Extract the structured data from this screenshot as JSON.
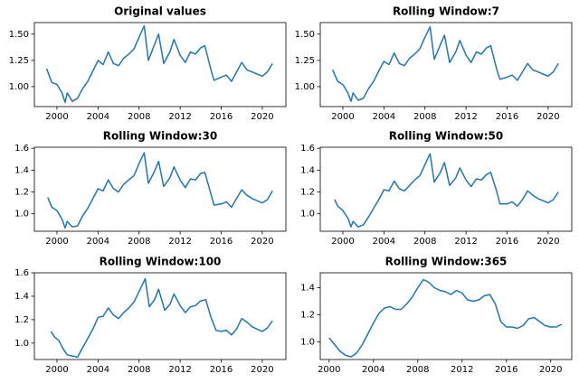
{
  "chart_data": [
    {
      "type": "line",
      "title": "Original values",
      "color": "#1f77b4",
      "x": [
        1999.0,
        1999.5,
        2000.0,
        2000.5,
        2000.8,
        2001.0,
        2001.5,
        2002.0,
        2002.5,
        2003.0,
        2003.5,
        2004.0,
        2004.5,
        2005.0,
        2005.5,
        2006.0,
        2006.5,
        2007.0,
        2007.5,
        2008.0,
        2008.5,
        2008.9,
        2009.5,
        2009.9,
        2010.4,
        2011.0,
        2011.4,
        2012.0,
        2012.5,
        2013.0,
        2013.5,
        2014.0,
        2014.4,
        2015.0,
        2015.3,
        2016.0,
        2016.5,
        2017.0,
        2017.5,
        2018.0,
        2018.5,
        2019.0,
        2019.5,
        2020.0,
        2020.5,
        2021.0
      ],
      "values": [
        1.17,
        1.04,
        1.02,
        0.94,
        0.85,
        0.94,
        0.86,
        0.89,
        0.98,
        1.05,
        1.15,
        1.25,
        1.21,
        1.33,
        1.22,
        1.2,
        1.27,
        1.31,
        1.36,
        1.47,
        1.58,
        1.25,
        1.4,
        1.5,
        1.22,
        1.33,
        1.45,
        1.3,
        1.23,
        1.33,
        1.31,
        1.37,
        1.39,
        1.16,
        1.06,
        1.09,
        1.11,
        1.05,
        1.14,
        1.23,
        1.16,
        1.14,
        1.12,
        1.1,
        1.14,
        1.22
      ],
      "xlim": [
        1997.8,
        2022.3
      ],
      "xticks": [
        2000,
        2004,
        2008,
        2012,
        2016,
        2020
      ],
      "ylim": [
        0.81,
        1.61
      ],
      "yticks": [
        {
          "value": 1,
          "label": "1.00"
        },
        {
          "value": 1.25,
          "label": "1.25"
        },
        {
          "value": 1.5,
          "label": "1.50"
        }
      ]
    },
    {
      "type": "line",
      "title": "Rolling Window:7",
      "color": "#1f77b4",
      "x": [
        1999.0,
        1999.5,
        2000.0,
        2000.5,
        2000.8,
        2001.0,
        2001.5,
        2002.0,
        2002.5,
        2003.0,
        2003.5,
        2004.0,
        2004.5,
        2005.0,
        2005.5,
        2006.0,
        2006.5,
        2007.0,
        2007.5,
        2008.0,
        2008.5,
        2008.9,
        2009.5,
        2009.9,
        2010.4,
        2011.0,
        2011.4,
        2012.0,
        2012.5,
        2013.0,
        2013.5,
        2014.0,
        2014.4,
        2015.0,
        2015.3,
        2016.0,
        2016.5,
        2017.0,
        2017.5,
        2018.0,
        2018.5,
        2019.0,
        2019.5,
        2020.0,
        2020.5,
        2021.0
      ],
      "values": [
        1.16,
        1.05,
        1.02,
        0.94,
        0.86,
        0.94,
        0.87,
        0.89,
        0.98,
        1.05,
        1.15,
        1.24,
        1.21,
        1.32,
        1.22,
        1.2,
        1.27,
        1.31,
        1.36,
        1.47,
        1.57,
        1.26,
        1.4,
        1.49,
        1.23,
        1.33,
        1.44,
        1.3,
        1.23,
        1.33,
        1.31,
        1.37,
        1.39,
        1.16,
        1.07,
        1.09,
        1.11,
        1.06,
        1.14,
        1.22,
        1.16,
        1.14,
        1.12,
        1.1,
        1.14,
        1.22
      ],
      "xlim": [
        1997.8,
        2022.3
      ],
      "xticks": [
        2000,
        2004,
        2008,
        2012,
        2016,
        2020
      ],
      "ylim": [
        0.81,
        1.61
      ],
      "yticks": [
        {
          "value": 1,
          "label": "1.00"
        },
        {
          "value": 1.25,
          "label": "1.25"
        },
        {
          "value": 1.5,
          "label": "1.50"
        }
      ]
    },
    {
      "type": "line",
      "title": "Rolling Window:30",
      "color": "#1f77b4",
      "x": [
        1999.1,
        1999.5,
        2000.0,
        2000.5,
        2000.8,
        2001.0,
        2001.5,
        2002.0,
        2002.5,
        2003.0,
        2003.5,
        2004.0,
        2004.5,
        2005.0,
        2005.5,
        2006.0,
        2006.5,
        2007.0,
        2007.5,
        2008.0,
        2008.5,
        2008.9,
        2009.5,
        2009.9,
        2010.4,
        2011.0,
        2011.4,
        2012.0,
        2012.5,
        2013.0,
        2013.5,
        2014.0,
        2014.4,
        2015.0,
        2015.3,
        2016.0,
        2016.5,
        2017.0,
        2017.5,
        2018.0,
        2018.5,
        2019.0,
        2019.5,
        2020.0,
        2020.5,
        2021.0
      ],
      "values": [
        1.15,
        1.06,
        1.03,
        0.95,
        0.87,
        0.93,
        0.88,
        0.89,
        0.98,
        1.05,
        1.14,
        1.23,
        1.21,
        1.31,
        1.23,
        1.2,
        1.27,
        1.31,
        1.35,
        1.46,
        1.56,
        1.28,
        1.39,
        1.48,
        1.25,
        1.33,
        1.43,
        1.31,
        1.24,
        1.32,
        1.31,
        1.37,
        1.38,
        1.18,
        1.08,
        1.09,
        1.11,
        1.06,
        1.14,
        1.22,
        1.17,
        1.14,
        1.12,
        1.1,
        1.13,
        1.21
      ],
      "xlim": [
        1997.8,
        2022.3
      ],
      "xticks": [
        2000,
        2004,
        2008,
        2012,
        2016,
        2020
      ],
      "ylim": [
        0.84,
        1.61
      ],
      "yticks": [
        {
          "value": 1,
          "label": "1.0"
        },
        1.2,
        1.4,
        1.6
      ]
    },
    {
      "type": "line",
      "title": "Rolling Window:50",
      "color": "#1f77b4",
      "x": [
        1999.2,
        1999.5,
        2000.0,
        2000.5,
        2000.8,
        2001.0,
        2001.5,
        2002.0,
        2002.5,
        2003.0,
        2003.5,
        2004.0,
        2004.5,
        2005.0,
        2005.5,
        2006.0,
        2006.5,
        2007.0,
        2007.5,
        2008.0,
        2008.5,
        2008.9,
        2009.5,
        2009.9,
        2010.4,
        2011.0,
        2011.4,
        2012.0,
        2012.5,
        2013.0,
        2013.5,
        2014.0,
        2014.4,
        2015.0,
        2015.3,
        2016.0,
        2016.5,
        2017.0,
        2017.5,
        2018.0,
        2018.5,
        2019.0,
        2019.5,
        2020.0,
        2020.5,
        2021.0
      ],
      "values": [
        1.13,
        1.07,
        1.03,
        0.96,
        0.88,
        0.93,
        0.88,
        0.9,
        0.97,
        1.05,
        1.13,
        1.22,
        1.21,
        1.3,
        1.23,
        1.21,
        1.26,
        1.31,
        1.35,
        1.45,
        1.55,
        1.29,
        1.38,
        1.47,
        1.26,
        1.33,
        1.42,
        1.31,
        1.25,
        1.32,
        1.31,
        1.36,
        1.38,
        1.2,
        1.09,
        1.09,
        1.11,
        1.07,
        1.13,
        1.21,
        1.17,
        1.14,
        1.12,
        1.1,
        1.13,
        1.2
      ],
      "xlim": [
        1997.8,
        2022.3
      ],
      "xticks": [
        2000,
        2004,
        2008,
        2012,
        2016,
        2020
      ],
      "ylim": [
        0.84,
        1.61
      ],
      "yticks": [
        {
          "value": 1,
          "label": "1.0"
        },
        1.2,
        1.4,
        1.6
      ]
    },
    {
      "type": "line",
      "title": "Rolling Window:100",
      "color": "#1f77b4",
      "x": [
        1999.4,
        1999.8,
        2000.2,
        2000.6,
        2001.0,
        2001.5,
        2002.0,
        2002.5,
        2003.0,
        2003.5,
        2004.0,
        2004.5,
        2005.0,
        2005.5,
        2006.0,
        2006.5,
        2007.0,
        2007.5,
        2008.0,
        2008.6,
        2009.0,
        2009.5,
        2009.9,
        2010.5,
        2011.0,
        2011.4,
        2012.0,
        2012.5,
        2013.0,
        2013.5,
        2014.0,
        2014.5,
        2015.0,
        2015.5,
        2016.0,
        2016.5,
        2017.0,
        2017.5,
        2018.0,
        2018.5,
        2019.0,
        2019.5,
        2020.0,
        2020.5,
        2021.0
      ],
      "values": [
        1.1,
        1.05,
        1.02,
        0.95,
        0.9,
        0.89,
        0.88,
        0.96,
        1.04,
        1.12,
        1.22,
        1.23,
        1.3,
        1.24,
        1.21,
        1.26,
        1.3,
        1.35,
        1.44,
        1.55,
        1.31,
        1.37,
        1.46,
        1.28,
        1.33,
        1.42,
        1.32,
        1.26,
        1.31,
        1.32,
        1.36,
        1.37,
        1.22,
        1.11,
        1.1,
        1.11,
        1.07,
        1.12,
        1.21,
        1.18,
        1.14,
        1.12,
        1.1,
        1.13,
        1.19
      ],
      "xlim": [
        1997.8,
        2022.3
      ],
      "xticks": [
        2000,
        2004,
        2008,
        2012,
        2016,
        2020
      ],
      "ylim": [
        0.86,
        1.6
      ],
      "yticks": [
        {
          "value": 1,
          "label": "1.0"
        },
        1.2,
        1.4,
        1.6
      ]
    },
    {
      "type": "line",
      "title": "Rolling Window:365",
      "color": "#1f77b4",
      "x": [
        2000.0,
        2000.5,
        2001.0,
        2001.5,
        2002.0,
        2002.5,
        2003.0,
        2003.5,
        2004.0,
        2004.5,
        2005.0,
        2005.5,
        2006.0,
        2006.5,
        2007.0,
        2007.5,
        2008.0,
        2008.5,
        2009.0,
        2009.5,
        2010.0,
        2010.5,
        2011.0,
        2011.5,
        2012.0,
        2012.5,
        2013.0,
        2013.5,
        2014.0,
        2014.5,
        2015.0,
        2015.5,
        2016.0,
        2016.5,
        2017.0,
        2017.5,
        2018.0,
        2018.5,
        2019.0,
        2019.5,
        2020.0,
        2020.5,
        2021.0
      ],
      "values": [
        1.03,
        0.98,
        0.93,
        0.9,
        0.89,
        0.92,
        0.98,
        1.06,
        1.14,
        1.21,
        1.25,
        1.26,
        1.24,
        1.24,
        1.28,
        1.33,
        1.4,
        1.46,
        1.44,
        1.4,
        1.38,
        1.37,
        1.35,
        1.38,
        1.36,
        1.31,
        1.3,
        1.31,
        1.34,
        1.35,
        1.28,
        1.15,
        1.11,
        1.11,
        1.1,
        1.12,
        1.17,
        1.18,
        1.15,
        1.12,
        1.11,
        1.11,
        1.13
      ],
      "xlim": [
        1999.2,
        2021.9
      ],
      "xticks": [
        2000,
        2004,
        2008,
        2012,
        2016,
        2020
      ],
      "ylim": [
        0.87,
        1.51
      ],
      "yticks": [
        {
          "value": 1,
          "label": "1.0"
        },
        1.2,
        1.4
      ]
    }
  ]
}
